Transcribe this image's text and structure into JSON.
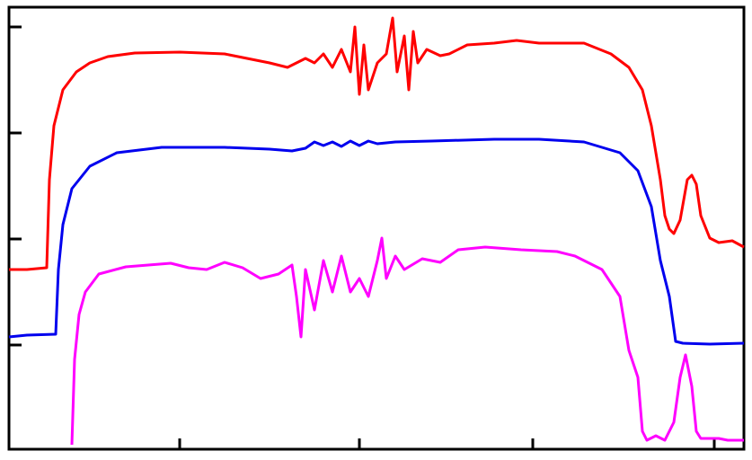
{
  "chart_data": {
    "type": "line",
    "xlim": [
      10,
      828
    ],
    "ylim": [
      0,
      492
    ],
    "xticks": [
      200,
      400,
      593,
      795
    ],
    "yticks": [
      116,
      234,
      352,
      470
    ],
    "series": [
      {
        "color": "#ff0000",
        "x": [
          10,
          30,
          52,
          55,
          60,
          70,
          85,
          100,
          120,
          150,
          200,
          250,
          300,
          320,
          340,
          350,
          360,
          370,
          380,
          390,
          395,
          400,
          405,
          410,
          420,
          430,
          437,
          442,
          450,
          455,
          460,
          465,
          475,
          490,
          500,
          520,
          550,
          575,
          600,
          650,
          680,
          700,
          715,
          725,
          735,
          740,
          745,
          750,
          757,
          765,
          770,
          775,
          780,
          790,
          800,
          815,
          828
        ],
        "values": [
          200,
          200,
          202,
          300,
          360,
          400,
          420,
          430,
          437,
          441,
          442,
          440,
          430,
          425,
          435,
          430,
          440,
          425,
          445,
          420,
          470,
          395,
          450,
          400,
          430,
          440,
          480,
          420,
          460,
          400,
          465,
          430,
          445,
          438,
          440,
          450,
          452,
          455,
          452,
          452,
          440,
          425,
          400,
          360,
          300,
          260,
          245,
          240,
          255,
          300,
          305,
          295,
          260,
          235,
          230,
          232,
          225
        ]
      },
      {
        "color": "#0000ee",
        "x": [
          10,
          30,
          62,
          65,
          70,
          80,
          100,
          130,
          180,
          250,
          300,
          325,
          340,
          350,
          360,
          370,
          380,
          390,
          400,
          410,
          420,
          440,
          480,
          550,
          600,
          650,
          690,
          710,
          725,
          735,
          740,
          745,
          752,
          760,
          790,
          828
        ],
        "values": [
          125,
          127,
          128,
          200,
          250,
          290,
          315,
          330,
          336,
          336,
          334,
          332,
          335,
          342,
          338,
          342,
          337,
          343,
          338,
          343,
          340,
          342,
          343,
          345,
          345,
          342,
          330,
          310,
          270,
          210,
          190,
          170,
          120,
          118,
          117,
          118
        ]
      },
      {
        "color": "#ff00ff",
        "x": [
          80,
          83,
          88,
          95,
          110,
          140,
          190,
          210,
          230,
          250,
          270,
          290,
          310,
          325,
          330,
          335,
          340,
          350,
          360,
          370,
          380,
          390,
          400,
          410,
          420,
          425,
          430,
          440,
          450,
          470,
          490,
          510,
          540,
          580,
          620,
          640,
          670,
          690,
          700,
          710,
          715,
          720,
          730,
          740,
          750,
          757,
          763,
          770,
          775,
          780,
          800,
          810,
          828
        ],
        "values": [
          5,
          100,
          150,
          175,
          195,
          203,
          207,
          202,
          200,
          208,
          202,
          190,
          195,
          205,
          170,
          125,
          200,
          155,
          210,
          175,
          215,
          175,
          190,
          170,
          210,
          235,
          190,
          215,
          200,
          212,
          208,
          222,
          225,
          222,
          220,
          215,
          200,
          170,
          110,
          80,
          20,
          10,
          15,
          10,
          30,
          80,
          105,
          70,
          20,
          12,
          12,
          10,
          10
        ]
      }
    ]
  }
}
